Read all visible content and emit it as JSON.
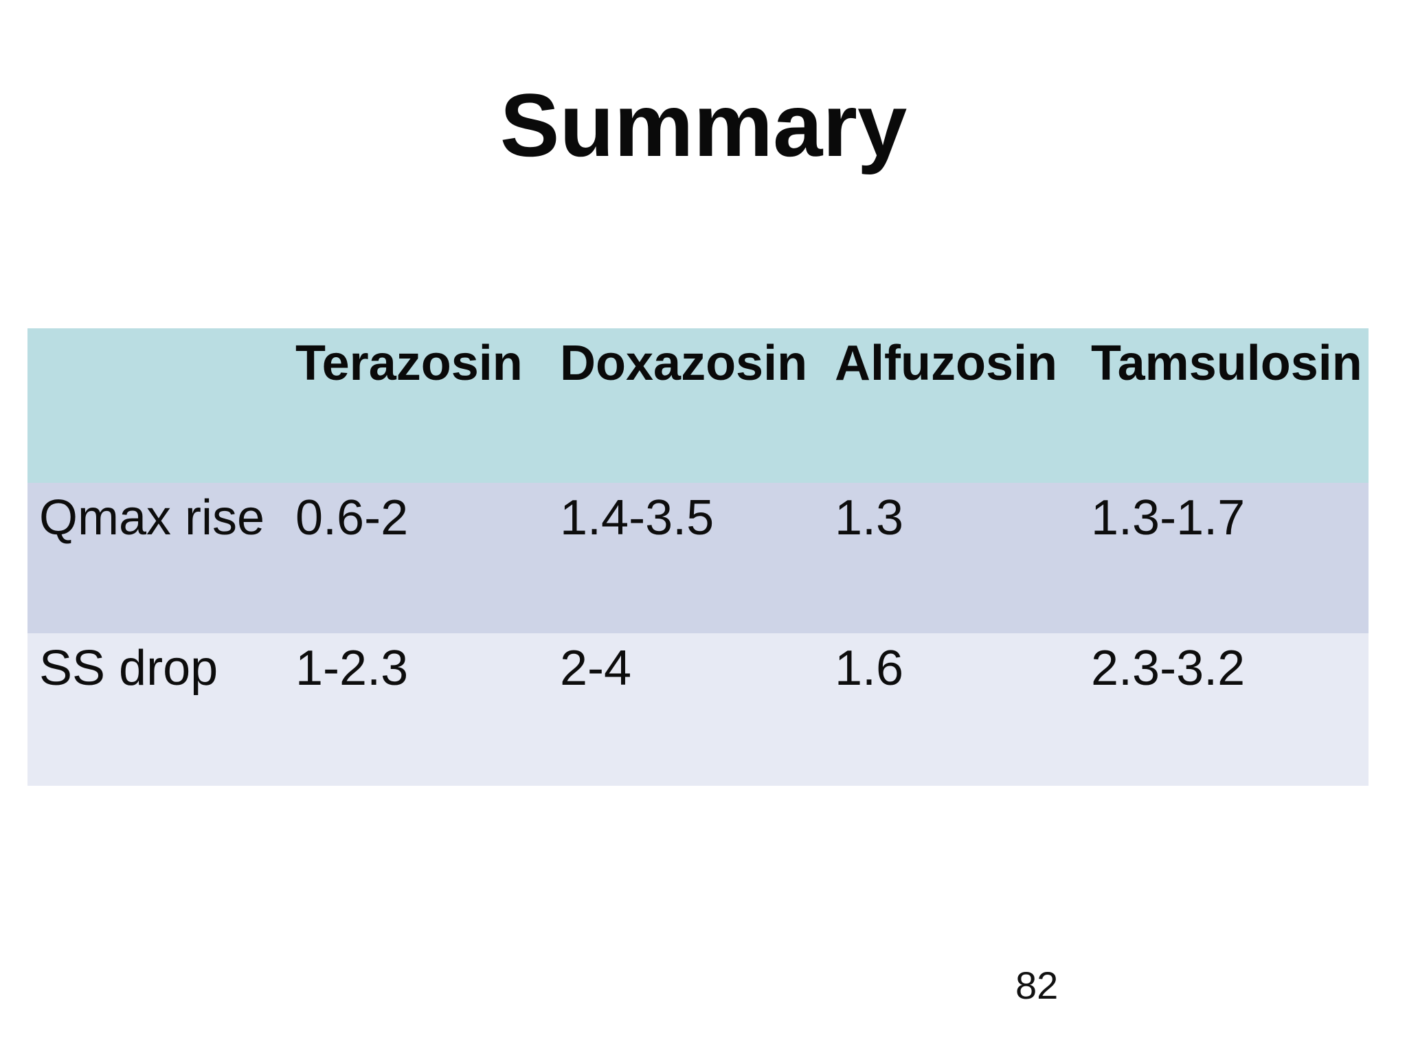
{
  "slide": {
    "title": "Summary",
    "page_number": "82"
  },
  "table": {
    "columns": [
      "",
      "Terazosin",
      "Doxazosin",
      "Alfuzosin",
      "Tamsulosin"
    ],
    "rows": [
      {
        "label": "Qmax rise",
        "values": [
          "0.6-2",
          "1.4-3.5",
          "1.3",
          "1.3-1.7"
        ]
      },
      {
        "label": "SS drop",
        "values": [
          "1-2.3",
          "2-4",
          "1.6",
          "2.3-3.2"
        ]
      }
    ]
  },
  "colors": {
    "background": "#ffffff",
    "header_bg": "#badde2",
    "row_qmax_bg": "#ced4e7",
    "row_ss_bg": "#e7eaf4",
    "text": "#0d0d0d"
  }
}
